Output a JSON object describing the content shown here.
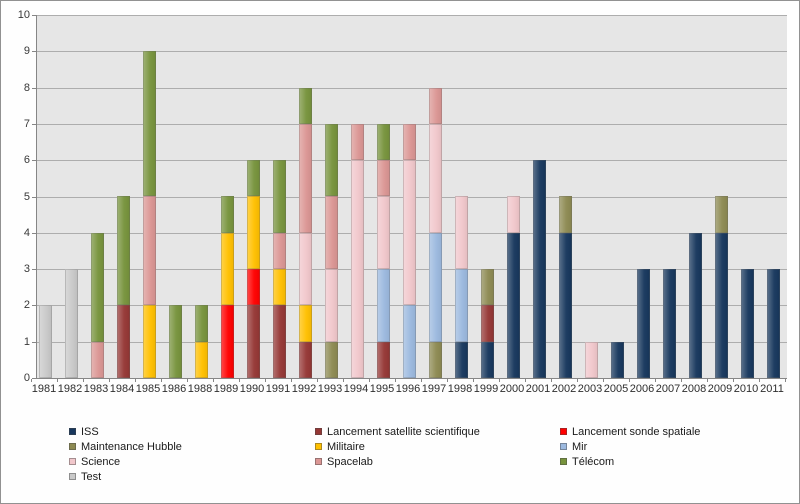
{
  "chart_data": {
    "type": "bar",
    "stacked": true,
    "title": "",
    "xlabel": "",
    "ylabel": "",
    "ylim": [
      0,
      10
    ],
    "ytick_step": 1,
    "grid": true,
    "legend_position": "bottom",
    "plot_background": "#e6e6e6",
    "gridline_color": "#adadad",
    "axis_color": "#868686",
    "categories": [
      "1981",
      "1982",
      "1983",
      "1984",
      "1985",
      "1986",
      "1988",
      "1989",
      "1990",
      "1991",
      "1992",
      "1993",
      "1994",
      "1995",
      "1996",
      "1997",
      "1998",
      "1999",
      "2000",
      "2001",
      "2002",
      "2003",
      "2005",
      "2006",
      "2007",
      "2008",
      "2009",
      "2010",
      "2011"
    ],
    "series": [
      {
        "name": "ISS",
        "color": "#17375d",
        "values": [
          0,
          0,
          0,
          0,
          0,
          0,
          0,
          0,
          0,
          0,
          0,
          0,
          0,
          0,
          0,
          0,
          1,
          1,
          4,
          6,
          4,
          0,
          1,
          3,
          3,
          4,
          4,
          3,
          3
        ]
      },
      {
        "name": "Lancement satellite scientifique",
        "color": "#953735",
        "values": [
          0,
          0,
          0,
          2,
          0,
          0,
          0,
          0,
          2,
          2,
          1,
          0,
          0,
          1,
          0,
          0,
          0,
          1,
          0,
          0,
          0,
          0,
          0,
          0,
          0,
          0,
          0,
          0,
          0
        ]
      },
      {
        "name": "Lancement sonde spatiale",
        "color": "#ff0000",
        "values": [
          0,
          0,
          0,
          0,
          0,
          0,
          0,
          2,
          1,
          0,
          0,
          0,
          0,
          0,
          0,
          0,
          0,
          0,
          0,
          0,
          0,
          0,
          0,
          0,
          0,
          0,
          0,
          0,
          0
        ]
      },
      {
        "name": "Maintenance Hubble",
        "color": "#8d8a52",
        "values": [
          0,
          0,
          0,
          0,
          0,
          0,
          0,
          0,
          0,
          0,
          0,
          1,
          0,
          0,
          0,
          1,
          0,
          1,
          0,
          0,
          1,
          0,
          0,
          0,
          0,
          0,
          1,
          0,
          0
        ]
      },
      {
        "name": "Militaire",
        "color": "#ffc000",
        "values": [
          0,
          0,
          0,
          0,
          2,
          0,
          1,
          2,
          2,
          1,
          1,
          0,
          0,
          0,
          0,
          0,
          0,
          0,
          0,
          0,
          0,
          0,
          0,
          0,
          0,
          0,
          0,
          0,
          0
        ]
      },
      {
        "name": "Mir",
        "color": "#9cb9df",
        "values": [
          0,
          0,
          0,
          0,
          0,
          0,
          0,
          0,
          0,
          0,
          0,
          0,
          0,
          2,
          2,
          3,
          2,
          0,
          0,
          0,
          0,
          0,
          0,
          0,
          0,
          0,
          0,
          0,
          0
        ]
      },
      {
        "name": "Science",
        "color": "#f1c7cb",
        "values": [
          0,
          0,
          0,
          0,
          0,
          0,
          0,
          0,
          0,
          0,
          2,
          2,
          6,
          2,
          4,
          3,
          2,
          0,
          1,
          0,
          0,
          1,
          0,
          0,
          0,
          0,
          0,
          0,
          0
        ]
      },
      {
        "name": "Spacelab",
        "color": "#db9694",
        "values": [
          0,
          0,
          1,
          0,
          3,
          0,
          0,
          0,
          0,
          1,
          3,
          2,
          1,
          1,
          1,
          1,
          0,
          0,
          0,
          0,
          0,
          0,
          0,
          0,
          0,
          0,
          0,
          0,
          0
        ]
      },
      {
        "name": "Télécom",
        "color": "#77933c",
        "values": [
          0,
          0,
          3,
          3,
          4,
          2,
          1,
          1,
          1,
          2,
          1,
          2,
          0,
          1,
          0,
          0,
          0,
          0,
          0,
          0,
          0,
          0,
          0,
          0,
          0,
          0,
          0,
          0,
          0
        ]
      },
      {
        "name": "Test",
        "color": "#c9c9c9",
        "values": [
          2,
          3,
          0,
          0,
          0,
          0,
          0,
          0,
          0,
          0,
          0,
          0,
          0,
          0,
          0,
          0,
          0,
          0,
          0,
          0,
          0,
          0,
          0,
          0,
          0,
          0,
          0,
          0,
          0
        ]
      }
    ],
    "yticks": [
      0,
      1,
      2,
      3,
      4,
      5,
      6,
      7,
      8,
      9,
      10
    ]
  }
}
